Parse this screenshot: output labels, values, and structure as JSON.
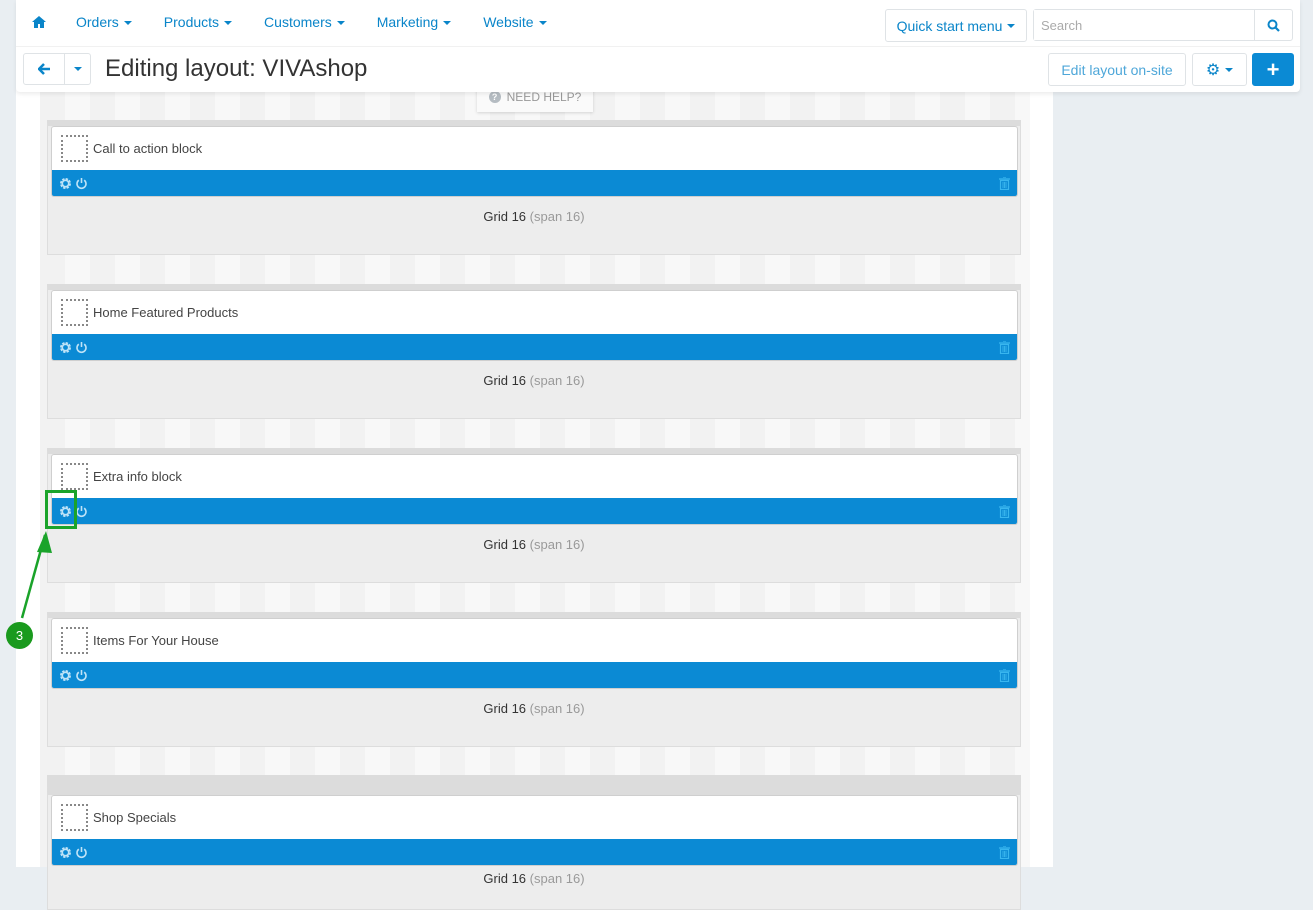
{
  "nav": {
    "items": [
      "Orders",
      "Products",
      "Customers",
      "Marketing",
      "Website"
    ],
    "quick_start": "Quick start menu",
    "search_placeholder": "Search"
  },
  "page": {
    "title": "Editing layout: VIVAshop",
    "edit_on_site": "Edit layout on-site",
    "need_help": "NEED HELP?"
  },
  "sections": [
    {
      "block": "Call to action block",
      "grid": "Grid 16",
      "span": "(span 16)"
    },
    {
      "block": "Home Featured Products",
      "grid": "Grid 16",
      "span": "(span 16)"
    },
    {
      "block": "Extra info block",
      "grid": "Grid 16",
      "span": "(span 16)"
    },
    {
      "block": "Items For Your House",
      "grid": "Grid 16",
      "span": "(span 16)"
    },
    {
      "block": "Shop Specials",
      "grid": "Grid 16",
      "span": "(span 16)"
    }
  ],
  "annotation": {
    "step": "3"
  },
  "colors": {
    "accent": "#0b8ad4",
    "link": "#0a85c9",
    "highlight": "#1aa32a"
  }
}
